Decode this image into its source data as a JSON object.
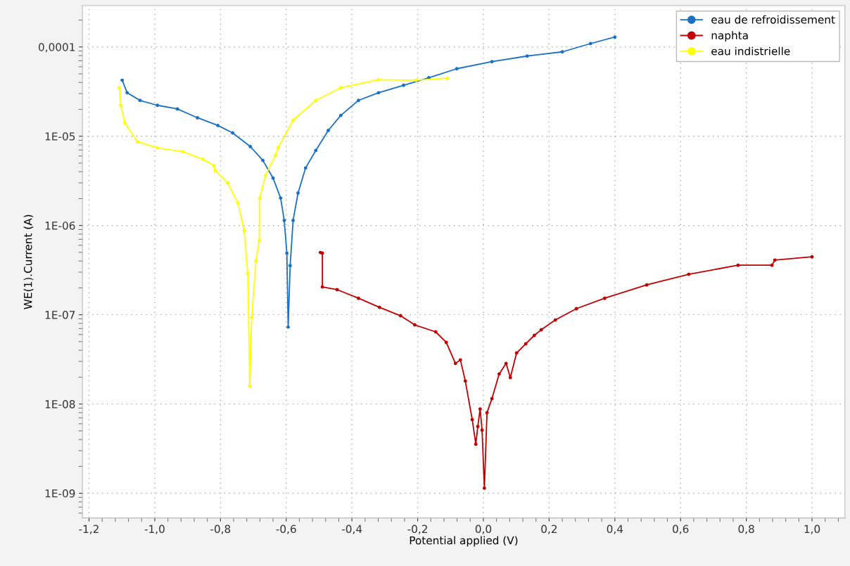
{
  "chart_data": {
    "type": "line",
    "xlabel": "Potential applied (V)",
    "ylabel": "WE(1).Current (A)",
    "log": "y",
    "grid": true,
    "legend": "top right",
    "marker": "circle",
    "line_style": "solid",
    "xlim": [
      -1.22,
      1.1
    ],
    "ylim": [
      5.3e-10,
      0.00029
    ],
    "xticks": [
      {
        "value": -1.2,
        "label": "-1,2"
      },
      {
        "value": -1.0,
        "label": "-1,0"
      },
      {
        "value": -0.8,
        "label": "-0,8"
      },
      {
        "value": -0.6,
        "label": "-0,6"
      },
      {
        "value": -0.4,
        "label": "-0,4"
      },
      {
        "value": -0.2,
        "label": "-0,2"
      },
      {
        "value": 0.0,
        "label": "0,0"
      },
      {
        "value": 0.2,
        "label": "0,2"
      },
      {
        "value": 0.4,
        "label": "0,4"
      },
      {
        "value": 0.6,
        "label": "0,6"
      },
      {
        "value": 0.8,
        "label": "0,8"
      },
      {
        "value": 1.0,
        "label": "1,0"
      }
    ],
    "yticks": [
      {
        "value": 1e-09,
        "label": "1E-09"
      },
      {
        "value": 1e-08,
        "label": "1E-08"
      },
      {
        "value": 1e-07,
        "label": "1E-07"
      },
      {
        "value": 1e-06,
        "label": "1E-06"
      },
      {
        "value": 1e-05,
        "label": "1E-05"
      },
      {
        "value": 0.0001,
        "label": "0,0001"
      }
    ],
    "series": [
      {
        "name": "eau de refroidissement",
        "color": "#1a72c4",
        "x": [
          -1.099,
          -1.084,
          -1.045,
          -0.992,
          -0.931,
          -0.87,
          -0.808,
          -0.763,
          -0.709,
          -0.671,
          -0.64,
          -0.617,
          -0.606,
          -0.598,
          -0.594,
          -0.588,
          -0.579,
          -0.564,
          -0.541,
          -0.51,
          -0.472,
          -0.434,
          -0.38,
          -0.319,
          -0.243,
          -0.166,
          -0.081,
          0.026,
          0.133,
          0.24,
          0.326,
          0.4
        ],
        "values": [
          4.24e-05,
          3.07e-05,
          2.52e-05,
          2.22e-05,
          2.02e-05,
          1.61e-05,
          1.32e-05,
          1.09e-05,
          7.65e-06,
          5.36e-06,
          3.4e-06,
          2.03e-06,
          1.14e-06,
          4.89e-07,
          7.28e-08,
          3.55e-07,
          1.14e-06,
          2.31e-06,
          4.41e-06,
          6.93e-06,
          1.16e-05,
          1.71e-05,
          2.52e-05,
          3.07e-05,
          3.72e-05,
          4.52e-05,
          5.7e-05,
          6.84e-05,
          7.9e-05,
          8.81e-05,
          0.000109,
          0.000129
        ]
      },
      {
        "name": "naphta",
        "color": "#c00000",
        "x": [
          -0.496,
          -0.49,
          -0.49,
          -0.445,
          -0.38,
          -0.316,
          -0.252,
          -0.209,
          -0.145,
          -0.113,
          -0.085,
          -0.07,
          -0.055,
          -0.034,
          -0.023,
          -0.017,
          -0.01,
          -0.004,
          0.003,
          0.011,
          0.026,
          0.048,
          0.069,
          0.082,
          0.101,
          0.129,
          0.155,
          0.176,
          0.219,
          0.283,
          0.369,
          0.497,
          0.625,
          0.775,
          0.878,
          0.887,
          1.0
        ],
        "values": [
          4.98e-07,
          4.9e-07,
          2.05e-07,
          1.91e-07,
          1.53e-07,
          1.21e-07,
          9.75e-08,
          7.7e-08,
          6.43e-08,
          4.9e-08,
          2.85e-08,
          3.12e-08,
          1.81e-08,
          6.7e-09,
          3.55e-09,
          5.6e-09,
          8.8e-09,
          5.1e-09,
          1.14e-09,
          8e-09,
          1.15e-08,
          2.17e-08,
          2.85e-08,
          1.98e-08,
          3.73e-08,
          4.73e-08,
          5.87e-08,
          6.79e-08,
          8.74e-08,
          1.17e-07,
          1.53e-07,
          2.16e-07,
          2.84e-07,
          3.59e-07,
          3.59e-07,
          4.1e-07,
          4.46e-07
        ]
      },
      {
        "name": "eau indistrielle",
        "color": "#ffff00",
        "x": [
          -1.108,
          -1.103,
          -1.091,
          -1.053,
          -0.992,
          -0.915,
          -0.854,
          -0.82,
          -0.816,
          -0.778,
          -0.747,
          -0.728,
          -0.717,
          -0.711,
          -0.705,
          -0.692,
          -0.682,
          -0.681,
          -0.663,
          -0.633,
          -0.625,
          -0.579,
          -0.51,
          -0.434,
          -0.319,
          -0.205,
          -0.109
        ],
        "values": [
          3.49e-05,
          2.22e-05,
          1.41e-05,
          8.69e-06,
          7.39e-06,
          6.71e-06,
          5.53e-06,
          4.7e-06,
          4.13e-06,
          2.99e-06,
          1.79e-06,
          8.77e-07,
          2.92e-07,
          1.59e-08,
          9.42e-08,
          4.03e-07,
          6.76e-07,
          2.03e-06,
          3.64e-06,
          6.09e-06,
          7.39e-06,
          1.51e-05,
          2.52e-05,
          3.49e-05,
          4.3e-05,
          4.24e-05,
          4.46e-05
        ]
      }
    ]
  }
}
